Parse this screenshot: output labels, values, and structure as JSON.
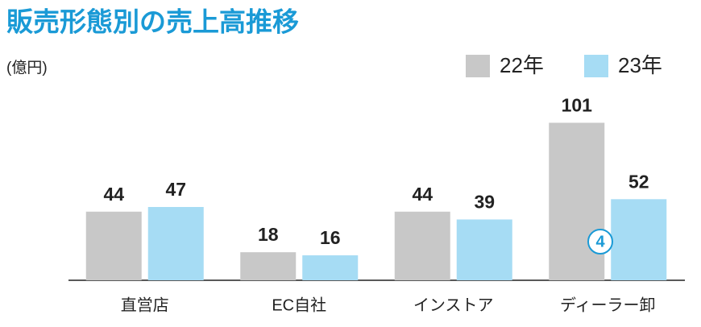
{
  "chart_data": {
    "type": "bar",
    "title": "販売形態別の売上高推移",
    "unit_label": "(億円)",
    "categories": [
      "直営店",
      "EC自社",
      "インストア",
      "ディーラー卸"
    ],
    "series": [
      {
        "name": "22年",
        "color": "#c8c8c8",
        "values": [
          44,
          18,
          44,
          101
        ]
      },
      {
        "name": "23年",
        "color": "#a6dcf4",
        "values": [
          47,
          16,
          39,
          52
        ]
      }
    ],
    "ylim": [
      0,
      110
    ],
    "annotation": "4",
    "annotation_color": "#1a9ad6"
  }
}
